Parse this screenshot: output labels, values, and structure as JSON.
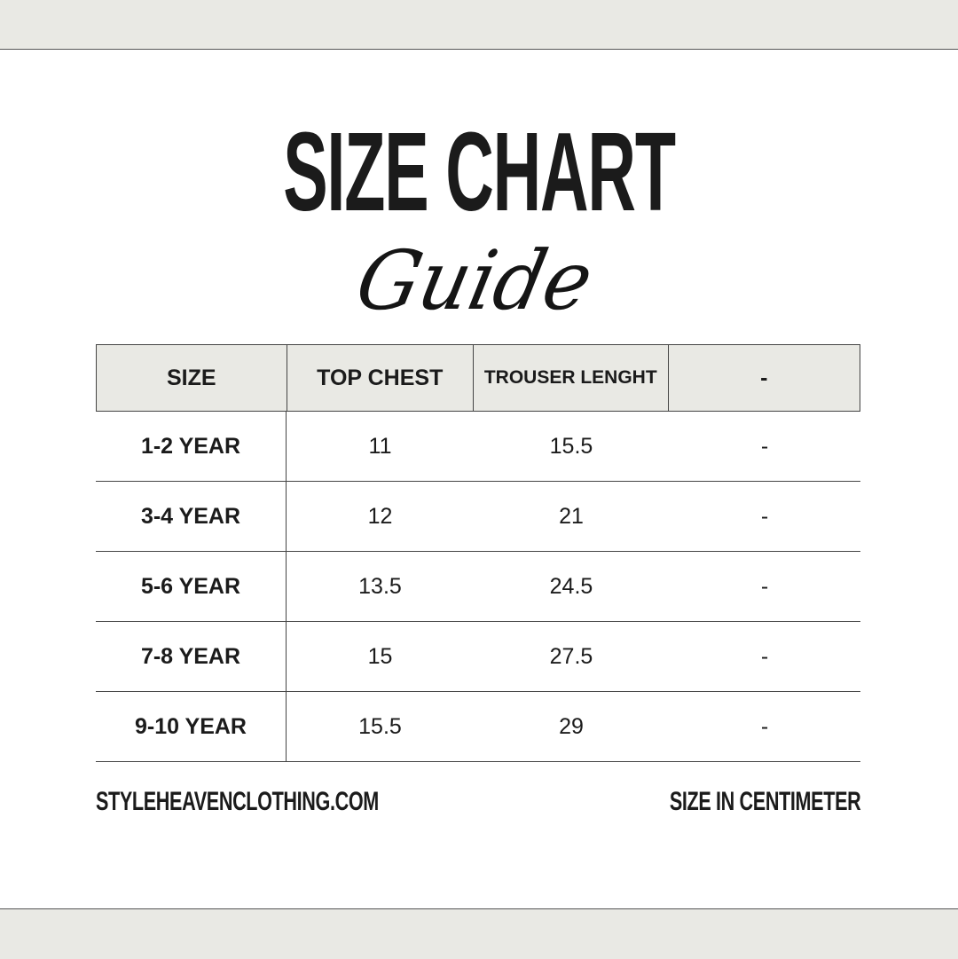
{
  "title": "SIZE CHART",
  "subtitle": "Guide",
  "table": {
    "headers": [
      "SIZE",
      "TOP CHEST",
      "TROUSER LENGHT",
      "-"
    ],
    "rows": [
      [
        "1-2 YEAR",
        "11",
        "15.5",
        "-"
      ],
      [
        "3-4 YEAR",
        "12",
        "21",
        "-"
      ],
      [
        "5-6 YEAR",
        "13.5",
        "24.5",
        "-"
      ],
      [
        "7-8 YEAR",
        "15",
        "27.5",
        "-"
      ],
      [
        "9-10 YEAR",
        "15.5",
        "29",
        "-"
      ]
    ]
  },
  "footer": {
    "website": "STYLEHEAVENCLOTHING.COM",
    "unit_note": "SIZE IN CENTIMETER"
  },
  "colors": {
    "header_bg": "#e9e9e4",
    "text": "#1b1b1b"
  }
}
